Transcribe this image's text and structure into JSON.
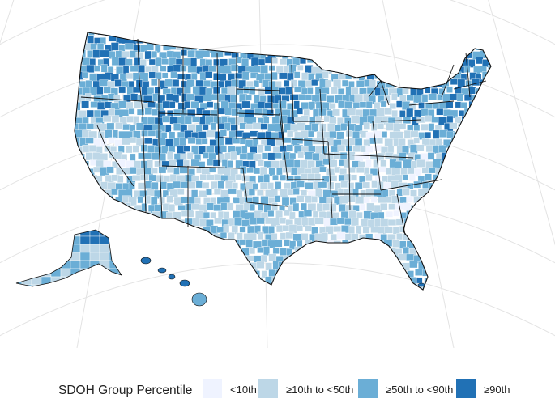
{
  "legend": {
    "title": "SDOH Group Percentile",
    "items": [
      {
        "label": "<10th",
        "color": "#eff3ff"
      },
      {
        "label": "≥10th to <50th",
        "color": "#bdd7e7"
      },
      {
        "label": "≥50th to <90th",
        "color": "#6baed6"
      },
      {
        "label": "≥90th",
        "color": "#2171b5"
      }
    ]
  },
  "map": {
    "projection": "albers-usa",
    "region": "United States counties",
    "graticule": true,
    "state_borders": true,
    "colors": {
      "background": "#ffffff",
      "graticule": "#e3e3e3",
      "state_border": "#111111",
      "county_border": "#ffffff"
    },
    "regional_pattern": {
      "Pacific Northwest & Mountain West": "≥50th to <90th",
      "Wyoming & Northern Plains": "≥50th to <90th",
      "Nevada": "<10th",
      "Southwest (NM, AZ)": "≥10th to <50th",
      "Appalachia & Kentucky": "<10th",
      "Deep South (MS, AL, GA)": "≥10th to <50th",
      "New England": "≥50th to <90th",
      "Alaska (north slope)": "≥90th",
      "Hawaii": "≥50th to <90th"
    }
  }
}
